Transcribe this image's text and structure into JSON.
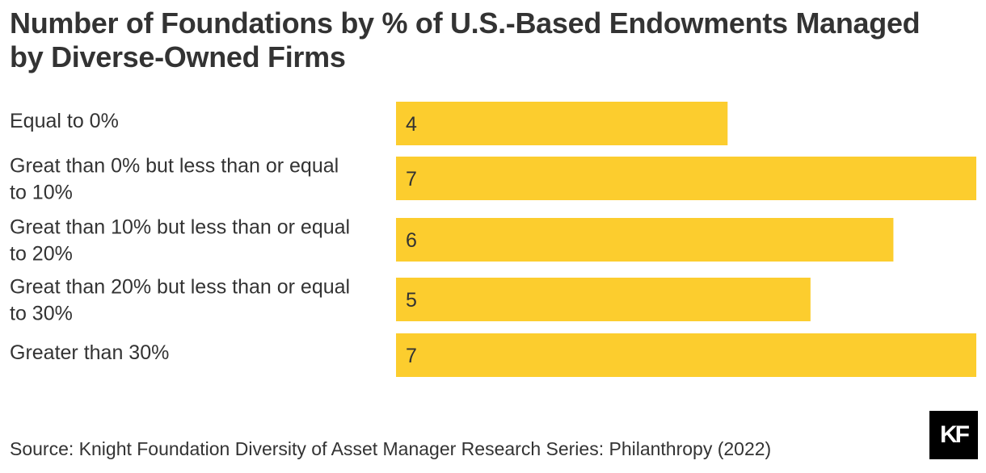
{
  "chart_data": {
    "type": "bar",
    "orientation": "horizontal",
    "title": "Number of Foundations by % of U.S.-Based Endowments Managed by Diverse-Owned Firms",
    "categories": [
      [
        "Equal to 0%"
      ],
      [
        "Great than 0% but less than or equal",
        "to 10%"
      ],
      [
        "Great than 10% but less than or equal",
        "to 20%"
      ],
      [
        "Great than 20% but less than or equal",
        "to 30%"
      ],
      [
        "Greater than 30%"
      ]
    ],
    "values": [
      4,
      7,
      6,
      5,
      7
    ],
    "xlim": [
      0,
      7
    ],
    "grid": false,
    "data_labels": true,
    "bar_color": "#FCCD2E"
  },
  "source": "Source: Knight Foundation Diversity of Asset Manager Research Series: Philanthropy (2022)",
  "logo": {
    "text": "KF",
    "background": "#000000",
    "color": "#ffffff"
  }
}
